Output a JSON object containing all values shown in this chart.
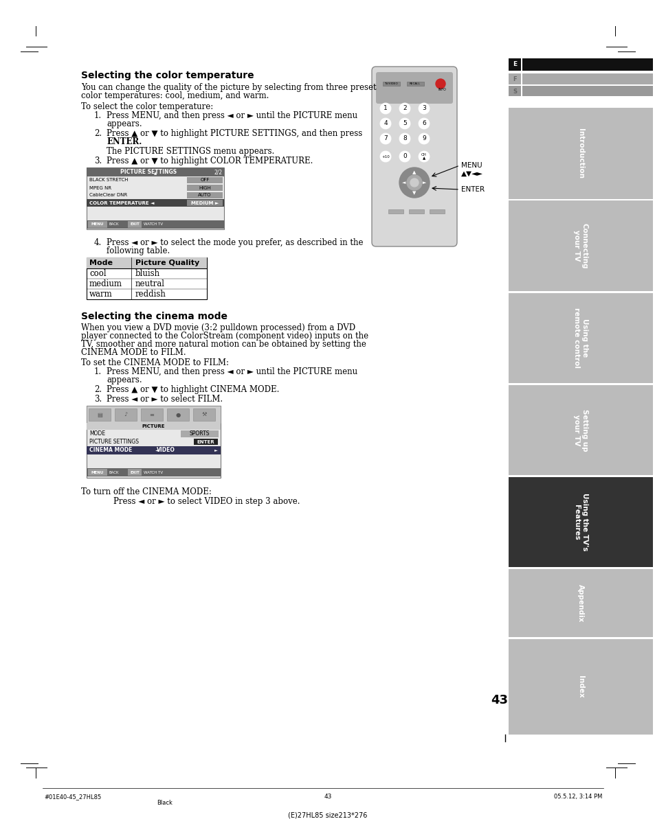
{
  "bg_color": "#ffffff",
  "title1": "Selecting the color temperature",
  "title2": "Selecting the cinema mode",
  "body_text1a": "You can change the quality of the picture by selecting from three preset",
  "body_text1b": "color temperatures: cool, medium, and warm.",
  "body_text2": "To select the color temperature:",
  "step4_text": "Press ◄ or ► to select the mode you prefer, as described in the",
  "step4_text2": "following table.",
  "table_headers": [
    "Mode",
    "Picture Quality"
  ],
  "table_rows": [
    [
      "cool",
      "bluish"
    ],
    [
      "medium",
      "neutral"
    ],
    [
      "warm",
      "reddish"
    ]
  ],
  "cinema_body1": "When you view a DVD movie (3:2 pulldown processed) from a DVD",
  "cinema_body2": "player connected to the ColorStream (component video) inputs on the",
  "cinema_body3": "TV, smoother and more natural motion can be obtained by setting the",
  "cinema_body4": "CINEMA MODE to FILM.",
  "cinema_to_set": "To set the CINEMA MODE to FILM:",
  "cinema_turn_off_title": "To turn off the CINEMA MODE:",
  "cinema_turn_off": "Press ◄ or ► to select VIDEO in step 3 above.",
  "page_number": "43",
  "footer_left": "#01E40-45_27HL85",
  "footer_center": "43",
  "footer_right": "05.5.12, 3:14 PM",
  "footer_bottom": "(E)27HL85 size213*276",
  "footer_color_note": "Black",
  "sidebar_dark_color": "#333333",
  "sidebar_light_color": "#bbbbbb",
  "sidebar_active_color": "#444444",
  "tab_e_color": "#111111",
  "tab_f_color": "#aaaaaa",
  "tab_s_color": "#999999"
}
